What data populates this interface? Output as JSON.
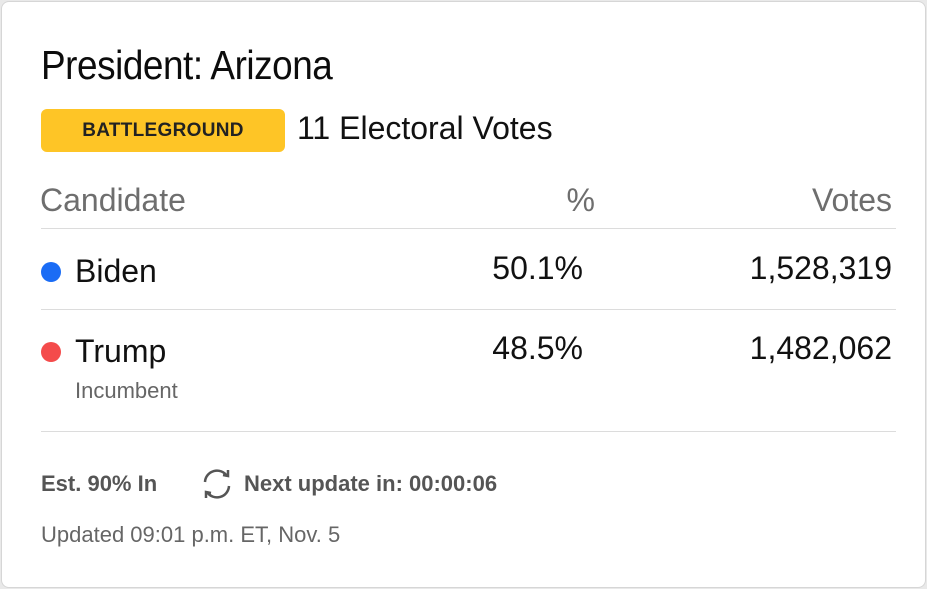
{
  "header": {
    "title": "President: Arizona",
    "badge": "BATTLEGROUND",
    "electoral_votes": "11 Electoral Votes"
  },
  "table": {
    "columns": [
      "Candidate",
      "%",
      "Votes"
    ],
    "rows": [
      {
        "name": "Biden",
        "percent": "50.1%",
        "votes": "1,528,319"
      },
      {
        "name": "Trump",
        "note": "Incumbent",
        "percent": "48.5%",
        "votes": "1,482,062"
      }
    ]
  },
  "footer": {
    "reporting": "Est. 90% In",
    "next_update": "Next update in: 00:00:06",
    "updated": "Updated 09:01 p.m. ET, Nov. 5"
  }
}
